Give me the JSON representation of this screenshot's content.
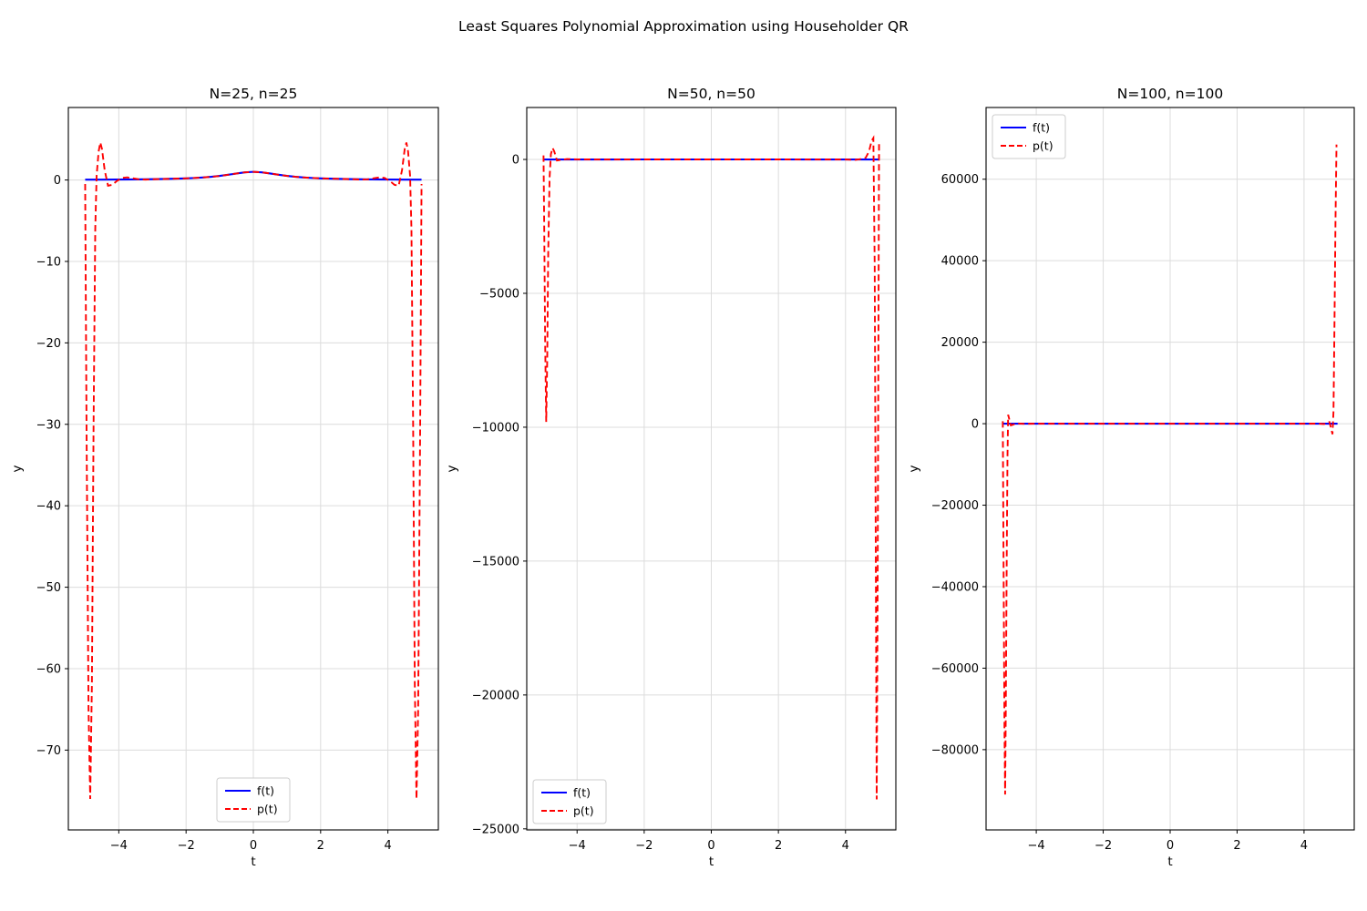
{
  "suptitle": "Least Squares Polynomial Approximation using Householder QR",
  "colors": {
    "f_line": "#0000ff",
    "p_line": "#ff0000",
    "grid": "#dcdcdc",
    "axis": "#000000",
    "legend_border": "#cccccc"
  },
  "chart_data": [
    {
      "type": "line",
      "title": "N=25, n=25",
      "xlabel": "t",
      "ylabel": "y",
      "xlim": [
        -5.5,
        5.5
      ],
      "ylim": [
        -79.8,
        8.9
      ],
      "grid": true,
      "legend_loc": "lower center",
      "xticks": [
        -4,
        -2,
        0,
        2,
        4
      ],
      "xtick_labels": [
        "−4",
        "−2",
        "0",
        "2",
        "4"
      ],
      "yticks": [
        0,
        -10,
        -20,
        -30,
        -40,
        -50,
        -60,
        -70
      ],
      "ytick_labels": [
        "0",
        "−10",
        "−20",
        "−30",
        "−40",
        "−50",
        "−60",
        "−70"
      ],
      "series": [
        {
          "name": "f(t)",
          "color": "#0000ff",
          "style": "solid",
          "points": [
            [
              -5,
              0.038
            ],
            [
              -4.5,
              0.047
            ],
            [
              -4,
              0.059
            ],
            [
              -3.5,
              0.075
            ],
            [
              -3,
              0.1
            ],
            [
              -2.5,
              0.138
            ],
            [
              -2,
              0.2
            ],
            [
              -1.75,
              0.246
            ],
            [
              -1.5,
              0.308
            ],
            [
              -1.25,
              0.39
            ],
            [
              -1,
              0.5
            ],
            [
              -0.75,
              0.64
            ],
            [
              -0.5,
              0.8
            ],
            [
              -0.25,
              0.941
            ],
            [
              0,
              1
            ],
            [
              0.25,
              0.941
            ],
            [
              0.5,
              0.8
            ],
            [
              0.75,
              0.64
            ],
            [
              1,
              0.5
            ],
            [
              1.25,
              0.39
            ],
            [
              1.5,
              0.308
            ],
            [
              1.75,
              0.246
            ],
            [
              2,
              0.2
            ],
            [
              2.5,
              0.138
            ],
            [
              3,
              0.1
            ],
            [
              3.5,
              0.075
            ],
            [
              4,
              0.059
            ],
            [
              4.5,
              0.047
            ],
            [
              5,
              0.038
            ]
          ]
        },
        {
          "name": "p(t)",
          "color": "#ff0000",
          "style": "dashed",
          "points": [
            [
              -5,
              -0.5
            ],
            [
              -4.96,
              -30
            ],
            [
              -4.9,
              -65
            ],
            [
              -4.85,
              -76
            ],
            [
              -4.8,
              -62
            ],
            [
              -4.75,
              -30
            ],
            [
              -4.7,
              -6
            ],
            [
              -4.66,
              0.5
            ],
            [
              -4.6,
              3.5
            ],
            [
              -4.55,
              4.6
            ],
            [
              -4.5,
              3.8
            ],
            [
              -4.42,
              1.2
            ],
            [
              -4.32,
              -0.7
            ],
            [
              -4.2,
              -0.6
            ],
            [
              -4.05,
              -0.1
            ],
            [
              -3.9,
              0.25
            ],
            [
              -3.75,
              0.32
            ],
            [
              -3.6,
              0.22
            ],
            [
              -3.4,
              0.08
            ],
            [
              -3.2,
              0.05
            ],
            [
              -3,
              0.09
            ],
            [
              -2.7,
              0.12
            ],
            [
              -2.4,
              0.15
            ],
            [
              -2,
              0.2
            ],
            [
              -1.75,
              0.25
            ],
            [
              -1.5,
              0.31
            ],
            [
              -1.25,
              0.39
            ],
            [
              -1,
              0.5
            ],
            [
              -0.75,
              0.64
            ],
            [
              -0.5,
              0.8
            ],
            [
              -0.25,
              0.94
            ],
            [
              0,
              1
            ],
            [
              0.25,
              0.94
            ],
            [
              0.5,
              0.8
            ],
            [
              0.75,
              0.64
            ],
            [
              1,
              0.5
            ],
            [
              1.25,
              0.39
            ],
            [
              1.5,
              0.31
            ],
            [
              1.75,
              0.25
            ],
            [
              2,
              0.2
            ],
            [
              2.4,
              0.15
            ],
            [
              2.7,
              0.12
            ],
            [
              3,
              0.09
            ],
            [
              3.2,
              0.05
            ],
            [
              3.4,
              0.08
            ],
            [
              3.6,
              0.22
            ],
            [
              3.75,
              0.32
            ],
            [
              3.9,
              0.25
            ],
            [
              4.05,
              -0.1
            ],
            [
              4.2,
              -0.6
            ],
            [
              4.32,
              -0.7
            ],
            [
              4.42,
              1.2
            ],
            [
              4.5,
              3.8
            ],
            [
              4.55,
              4.6
            ],
            [
              4.6,
              3.5
            ],
            [
              4.66,
              0.5
            ],
            [
              4.7,
              -6
            ],
            [
              4.75,
              -30
            ],
            [
              4.8,
              -62
            ],
            [
              4.85,
              -76
            ],
            [
              4.9,
              -65
            ],
            [
              4.96,
              -30
            ],
            [
              5,
              -0.5
            ]
          ]
        }
      ]
    },
    {
      "type": "line",
      "title": "N=50, n=50",
      "xlabel": "t",
      "ylabel": "y",
      "xlim": [
        -5.5,
        5.5
      ],
      "ylim": [
        -25040,
        1940
      ],
      "grid": true,
      "legend_loc": "lower left",
      "xticks": [
        -4,
        -2,
        0,
        2,
        4
      ],
      "xtick_labels": [
        "−4",
        "−2",
        "0",
        "2",
        "4"
      ],
      "yticks": [
        0,
        -5000,
        -10000,
        -15000,
        -20000,
        -25000
      ],
      "ytick_labels": [
        "0",
        "−5000",
        "−10000",
        "−15000",
        "−20000",
        "−25000"
      ],
      "series": [
        {
          "name": "f(t)",
          "color": "#0000ff",
          "style": "solid",
          "points": [
            [
              -5,
              0.038
            ],
            [
              -4,
              0.059
            ],
            [
              -3,
              0.1
            ],
            [
              -2,
              0.2
            ],
            [
              -1,
              0.5
            ],
            [
              0,
              1
            ],
            [
              1,
              0.5
            ],
            [
              2,
              0.2
            ],
            [
              3,
              0.1
            ],
            [
              4,
              0.059
            ],
            [
              5,
              0.038
            ]
          ]
        },
        {
          "name": "p(t)",
          "color": "#ff0000",
          "style": "dashed",
          "points": [
            [
              -5,
              150
            ],
            [
              -4.98,
              -2500
            ],
            [
              -4.95,
              -7000
            ],
            [
              -4.92,
              -9800
            ],
            [
              -4.89,
              -7500
            ],
            [
              -4.86,
              -3500
            ],
            [
              -4.82,
              -700
            ],
            [
              -4.78,
              200
            ],
            [
              -4.73,
              430
            ],
            [
              -4.68,
              300
            ],
            [
              -4.6,
              -40
            ],
            [
              -4.5,
              -20
            ],
            [
              -4.3,
              15
            ],
            [
              -4,
              2
            ],
            [
              -3.5,
              0.1
            ],
            [
              -3,
              0.1
            ],
            [
              -2,
              0.2
            ],
            [
              -1,
              0.5
            ],
            [
              0,
              1
            ],
            [
              1,
              0.5
            ],
            [
              2,
              0.2
            ],
            [
              3,
              0.1
            ],
            [
              3.5,
              0.1
            ],
            [
              4,
              -2
            ],
            [
              4.3,
              -15
            ],
            [
              4.5,
              20
            ],
            [
              4.6,
              60
            ],
            [
              4.7,
              300
            ],
            [
              4.78,
              700
            ],
            [
              4.83,
              800
            ],
            [
              4.87,
              -4000
            ],
            [
              4.9,
              -14000
            ],
            [
              4.93,
              -23900
            ],
            [
              4.96,
              -15000
            ],
            [
              5,
              680
            ]
          ]
        }
      ]
    },
    {
      "type": "line",
      "title": "N=100, n=100",
      "xlabel": "t",
      "ylabel": "y",
      "xlim": [
        -5.5,
        5.5
      ],
      "ylim": [
        -99700,
        77600
      ],
      "grid": true,
      "legend_loc": "upper left",
      "xticks": [
        -4,
        -2,
        0,
        2,
        4
      ],
      "xtick_labels": [
        "−4",
        "−2",
        "0",
        "2",
        "4"
      ],
      "yticks": [
        60000,
        40000,
        20000,
        0,
        -20000,
        -40000,
        -60000,
        -80000
      ],
      "ytick_labels": [
        "60000",
        "40000",
        "20000",
        "0",
        "−20000",
        "−40000",
        "−60000",
        "−80000"
      ],
      "series": [
        {
          "name": "f(t)",
          "color": "#0000ff",
          "style": "solid",
          "points": [
            [
              -5,
              0.038
            ],
            [
              -4,
              0.059
            ],
            [
              -3,
              0.1
            ],
            [
              -2,
              0.2
            ],
            [
              -1,
              0.5
            ],
            [
              0,
              1
            ],
            [
              1,
              0.5
            ],
            [
              2,
              0.2
            ],
            [
              3,
              0.1
            ],
            [
              4,
              0.059
            ],
            [
              5,
              0.038
            ]
          ]
        },
        {
          "name": "p(t)",
          "color": "#ff0000",
          "style": "dashed",
          "points": [
            [
              -5,
              600
            ],
            [
              -4.98,
              -30000
            ],
            [
              -4.95,
              -75000
            ],
            [
              -4.93,
              -91000
            ],
            [
              -4.91,
              -70000
            ],
            [
              -4.88,
              -30000
            ],
            [
              -4.86,
              -8000
            ],
            [
              -4.84,
              2200
            ],
            [
              -4.81,
              1200
            ],
            [
              -4.76,
              -400
            ],
            [
              -4.7,
              -250
            ],
            [
              -4.6,
              80
            ],
            [
              -4.4,
              -20
            ],
            [
              -4,
              1
            ],
            [
              -3,
              0.1
            ],
            [
              -2,
              0.2
            ],
            [
              -1,
              0.5
            ],
            [
              0,
              1
            ],
            [
              1,
              0.5
            ],
            [
              2,
              0.2
            ],
            [
              3,
              0.1
            ],
            [
              4,
              -1
            ],
            [
              4.4,
              20
            ],
            [
              4.6,
              -80
            ],
            [
              4.7,
              250
            ],
            [
              4.76,
              400
            ],
            [
              4.81,
              -1200
            ],
            [
              4.85,
              -2600
            ],
            [
              4.88,
              3000
            ],
            [
              4.91,
              25000
            ],
            [
              4.94,
              50000
            ],
            [
              4.97,
              68500
            ]
          ]
        }
      ]
    }
  ]
}
